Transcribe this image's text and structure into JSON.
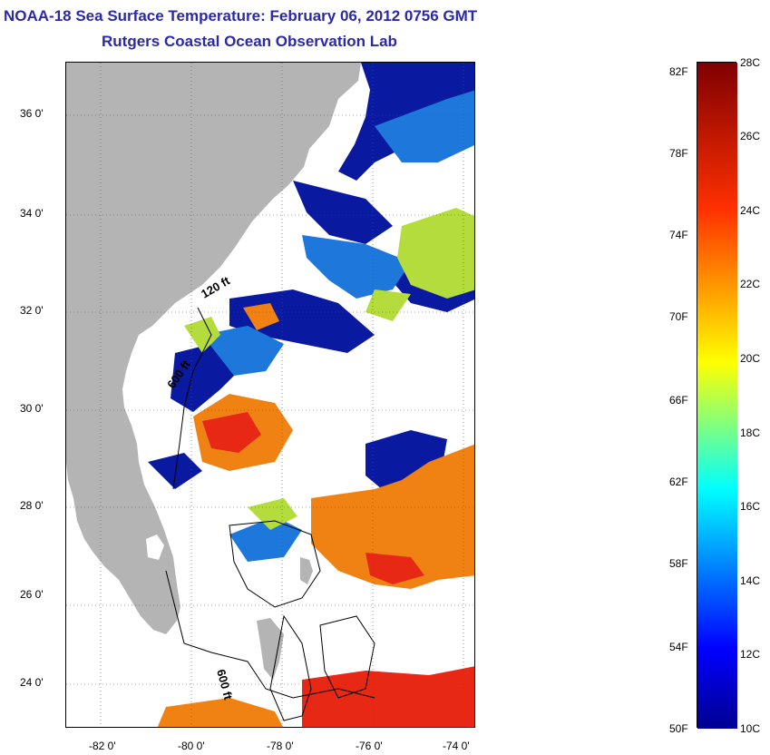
{
  "header": {
    "title": "NOAA-18 Sea Surface Temperature:  February 06, 2012 0756 GMT",
    "subtitle": "Rutgers Coastal Ocean Observation Lab"
  },
  "map": {
    "lat_labels": [
      "36 0'",
      "34 0'",
      "32 0'",
      "30 0'",
      "28 0'",
      "26 0'",
      "24 0'"
    ],
    "lon_labels": [
      "-82 0'",
      "-80 0'",
      "-78 0'",
      "-76 0'",
      "-74 0'"
    ],
    "contour_labels": [
      "120 ft",
      "600 ft",
      "600 ft"
    ],
    "colors": {
      "land": "#b4b4b4",
      "cloud": "#ffffff",
      "cold": "#0a1aa0",
      "cool": "#1e78dc",
      "mild": "#b4dc3c",
      "warm": "#f08214",
      "hot": "#e62814"
    }
  },
  "colorbar": {
    "f_labels": [
      "82F",
      "78F",
      "74F",
      "70F",
      "66F",
      "62F",
      "58F",
      "54F",
      "50F"
    ],
    "c_labels": [
      "28C",
      "26C",
      "24C",
      "22C",
      "20C",
      "18C",
      "16C",
      "14C",
      "12C",
      "10C"
    ],
    "range_c": [
      10,
      28
    ]
  }
}
